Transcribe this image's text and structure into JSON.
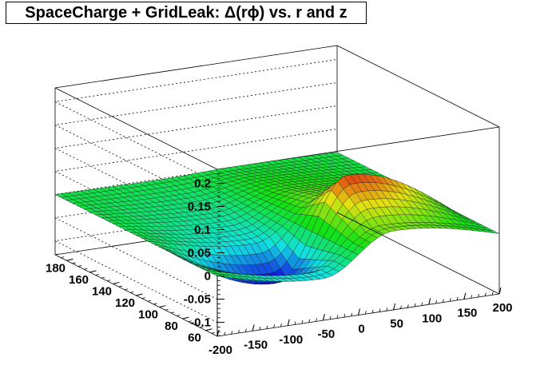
{
  "chart_data": {
    "type": "surface",
    "title": "SpaceCharge + GridLeak: Δ(rϕ) vs. r and z",
    "xlabel": "",
    "ylabel": "",
    "zlabel": "",
    "x_ticks": [
      "-200",
      "-150",
      "-100",
      "-50",
      "0",
      "50",
      "100",
      "150",
      "200"
    ],
    "y_ticks": [
      "60",
      "80",
      "100",
      "120",
      "140",
      "160",
      "180"
    ],
    "z_ticks": [
      "-0.1",
      "-0.05",
      "0",
      "0.05",
      "0.1",
      "0.15",
      "0.2"
    ],
    "x_range": [
      -200,
      200
    ],
    "y_range": [
      50,
      190
    ],
    "z_range": [
      -0.13,
      0.23
    ],
    "colormap": "rainbow",
    "grid": true,
    "z_along_r_at_negative_z_side": [
      [
        185,
        -0.002
      ],
      [
        140,
        -0.02
      ],
      [
        110,
        -0.04
      ],
      [
        90,
        -0.1
      ],
      [
        60,
        -0.04
      ]
    ],
    "z_along_r_at_positive_z_side": [
      [
        185,
        0.002
      ],
      [
        140,
        0.02
      ],
      [
        110,
        0.04
      ],
      [
        90,
        0.11
      ],
      [
        60,
        0.04
      ]
    ],
    "peak": {
      "r": 90,
      "z": 50,
      "value": 0.12
    },
    "trough": {
      "r": 90,
      "z": -50,
      "value": -0.12
    }
  },
  "colors": {
    "background": "#ffffff",
    "axis": "#000000",
    "grid": "#000000"
  }
}
